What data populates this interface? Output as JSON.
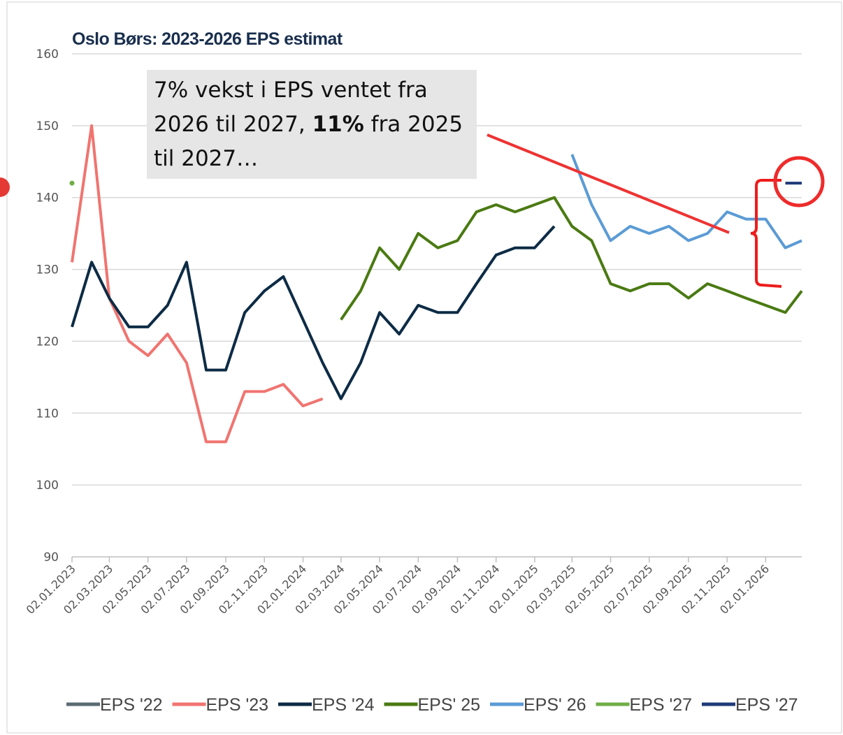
{
  "chart_data": {
    "type": "line",
    "title": "Oslo Børs: 2023-2026 EPS estimat",
    "annotation": [
      "7% vekst i EPS ventet fra 2026 til 2027, ",
      "11%",
      " fra 2025 til 2027…"
    ],
    "x": [
      "02.01.2023",
      "02.02.2023",
      "02.03.2023",
      "02.04.2023",
      "02.05.2023",
      "02.06.2023",
      "02.07.2023",
      "02.08.2023",
      "02.09.2023",
      "02.10.2023",
      "02.11.2023",
      "02.12.2023",
      "02.01.2024",
      "02.02.2024",
      "02.03.2024",
      "02.04.2024",
      "02.05.2024",
      "02.06.2024",
      "02.07.2024",
      "02.08.2024",
      "02.09.2024",
      "02.10.2024",
      "02.11.2024",
      "02.12.2024",
      "02.01.2025",
      "02.02.2025",
      "02.03.2025",
      "02.04.2025",
      "02.05.2025",
      "02.06.2025",
      "02.07.2025",
      "02.08.2025",
      "02.09.2025",
      "02.10.2025",
      "02.11.2025",
      "02.12.2025",
      "02.01.2026",
      "02.02.2026",
      "28.02.2026"
    ],
    "series": [
      {
        "name": "EPS '22",
        "color": "#5a6a72",
        "values": [
          null,
          null,
          null,
          null,
          null,
          null,
          null,
          null,
          null,
          null,
          null,
          null,
          null,
          null,
          null,
          null,
          null,
          null,
          null,
          null,
          null,
          null,
          null,
          null,
          null,
          null,
          null,
          null,
          null,
          null,
          null,
          null,
          null,
          null,
          null,
          null,
          null,
          null,
          null
        ]
      },
      {
        "name": "EPS '23",
        "color": "#f07470",
        "values": [
          131,
          150,
          126,
          120,
          118,
          121,
          117,
          106,
          106,
          113,
          113,
          114,
          111,
          112,
          null,
          null,
          null,
          null,
          null,
          null,
          null,
          null,
          null,
          null,
          null,
          null,
          null,
          null,
          null,
          null,
          null,
          null,
          null,
          null,
          null,
          null,
          null,
          null,
          null
        ]
      },
      {
        "name": "EPS '24",
        "color": "#0d2b45",
        "values": [
          122,
          131,
          126,
          122,
          122,
          125,
          131,
          116,
          116,
          124,
          127,
          129,
          123,
          117,
          112,
          117,
          124,
          121,
          125,
          124,
          124,
          128,
          132,
          133,
          133,
          136,
          null,
          null,
          null,
          null,
          null,
          null,
          null,
          null,
          null,
          null,
          null,
          null,
          null
        ]
      },
      {
        "name": "EPS' 25",
        "color": "#4a7a12",
        "values": [
          null,
          null,
          null,
          null,
          null,
          null,
          null,
          null,
          null,
          null,
          null,
          null,
          null,
          null,
          123,
          127,
          133,
          130,
          135,
          133,
          134,
          138,
          139,
          138,
          139,
          140,
          136,
          134,
          128,
          127,
          128,
          128,
          126,
          128,
          127,
          126,
          125,
          124,
          127
        ]
      },
      {
        "name": "EPS' 26",
        "color": "#5b9bd5",
        "values": [
          null,
          null,
          null,
          null,
          null,
          null,
          null,
          null,
          null,
          null,
          null,
          null,
          null,
          null,
          null,
          null,
          null,
          null,
          null,
          null,
          null,
          null,
          null,
          null,
          null,
          null,
          146,
          139,
          134,
          136,
          135,
          136,
          134,
          135,
          138,
          137,
          137,
          133,
          134
        ]
      },
      {
        "name": "EPS '27",
        "color": "#70ad47",
        "values": [
          142,
          null,
          null,
          null,
          null,
          null,
          null,
          null,
          null,
          null,
          null,
          null,
          null,
          null,
          null,
          null,
          null,
          null,
          null,
          null,
          null,
          null,
          null,
          null,
          null,
          null,
          null,
          null,
          null,
          null,
          null,
          null,
          null,
          null,
          null,
          null,
          null,
          null,
          null
        ]
      },
      {
        "name": "EPS '27",
        "color": "#1f3a7a",
        "values": [
          null,
          null,
          null,
          null,
          null,
          null,
          null,
          null,
          null,
          null,
          null,
          null,
          null,
          null,
          null,
          null,
          null,
          null,
          null,
          null,
          null,
          null,
          null,
          null,
          null,
          null,
          null,
          null,
          null,
          null,
          null,
          null,
          null,
          null,
          null,
          null,
          null,
          142,
          142
        ]
      }
    ],
    "xlim": [
      "02.01.2023",
      "28.02.2026"
    ],
    "xticks": [
      "02.01.2023",
      "02.03.2023",
      "02.05.2023",
      "02.07.2023",
      "02.09.2023",
      "02.11.2023",
      "02.01.2024",
      "02.03.2024",
      "02.05.2024",
      "02.07.2024",
      "02.09.2024",
      "02.11.2024",
      "02.01.2025",
      "02.03.2025",
      "02.05.2025",
      "02.07.2025",
      "02.09.2025",
      "02.11.2025",
      "02.01.2026"
    ],
    "ylim": [
      90,
      160
    ],
    "yticks": [
      90,
      100,
      110,
      120,
      130,
      140,
      150,
      160
    ],
    "grid": true,
    "legend": "bottom"
  }
}
